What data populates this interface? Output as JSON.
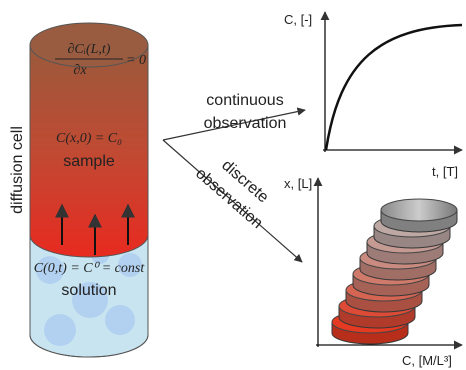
{
  "cell": {
    "label": "diffusion cell",
    "top_bc": {
      "numerator": "∂Cᵢ(L,t)",
      "denominator": "∂x",
      "rhs": "= 0"
    },
    "initial": "C(x,0) = C₀",
    "sample": "sample",
    "bottom_bc": "C(0,t) = C⁰ = const",
    "solution": "solution"
  },
  "arrows": {
    "continuous": [
      "continuous",
      "observation"
    ],
    "discrete": [
      "discrete",
      "observation"
    ]
  },
  "plot_continuous": {
    "y_label": "C, [-]",
    "x_label": "t, [T]"
  },
  "plot_discrete": {
    "y_label": "x, [L]",
    "x_label": "C, [M/L³]"
  }
}
